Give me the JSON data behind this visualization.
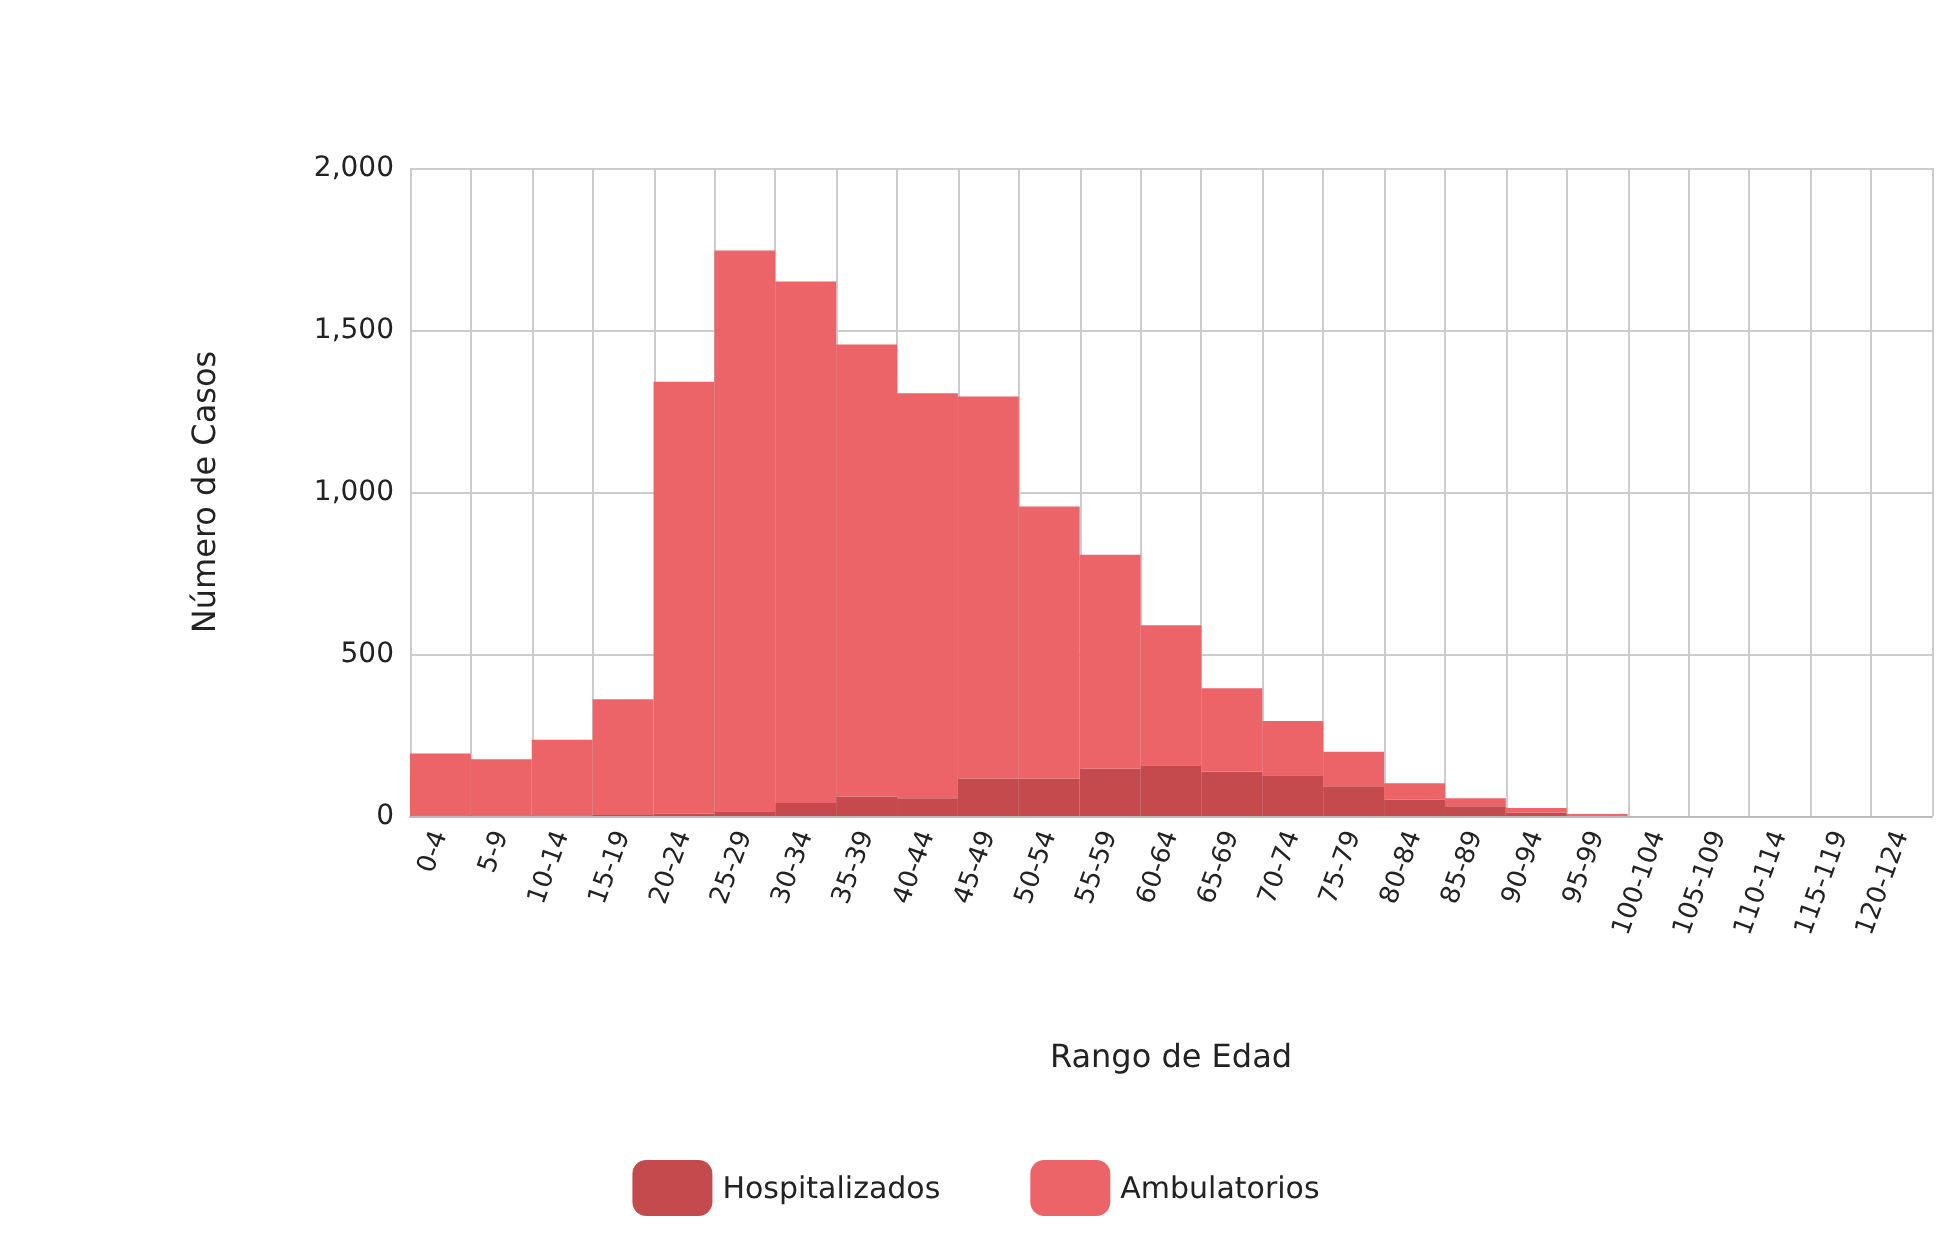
{
  "chart_data": {
    "type": "bar",
    "stacked": true,
    "xlabel": "Rango de Edad",
    "ylabel": "Número de Casos",
    "categories": [
      "0-4",
      "5-9",
      "10-14",
      "15-19",
      "20-24",
      "25-29",
      "30-34",
      "35-39",
      "40-44",
      "45-49",
      "50-54",
      "55-59",
      "60-64",
      "65-69",
      "70-74",
      "75-79",
      "80-84",
      "85-89",
      "90-94",
      "95-99",
      "100-104",
      "105-109",
      "110-114",
      "115-119",
      "120-124"
    ],
    "series": [
      {
        "name": "Hospitalizados",
        "color": "#c44a4e",
        "values": [
          2,
          2,
          2,
          3,
          8,
          15,
          40,
          60,
          55,
          115,
          115,
          146,
          157,
          137,
          126,
          92,
          50,
          30,
          10,
          2,
          0,
          0,
          0,
          0,
          0
        ]
      },
      {
        "name": "Ambulatorios",
        "color": "#ec6468",
        "values": [
          191,
          173,
          233,
          357,
          1332,
          1730,
          1610,
          1395,
          1250,
          1180,
          840,
          660,
          432,
          257,
          167,
          106,
          51,
          25,
          15,
          4,
          0,
          0,
          0,
          0,
          0
        ]
      }
    ],
    "ylim": [
      0,
      2000
    ],
    "yticks": [
      {
        "value": 0,
        "label": "0"
      },
      {
        "value": 500,
        "label": "500"
      },
      {
        "value": 1000,
        "label": "1,000"
      },
      {
        "value": 1500,
        "label": "1,500"
      },
      {
        "value": 2000,
        "label": "2,000"
      }
    ],
    "grid": true,
    "legend": "bottom"
  }
}
